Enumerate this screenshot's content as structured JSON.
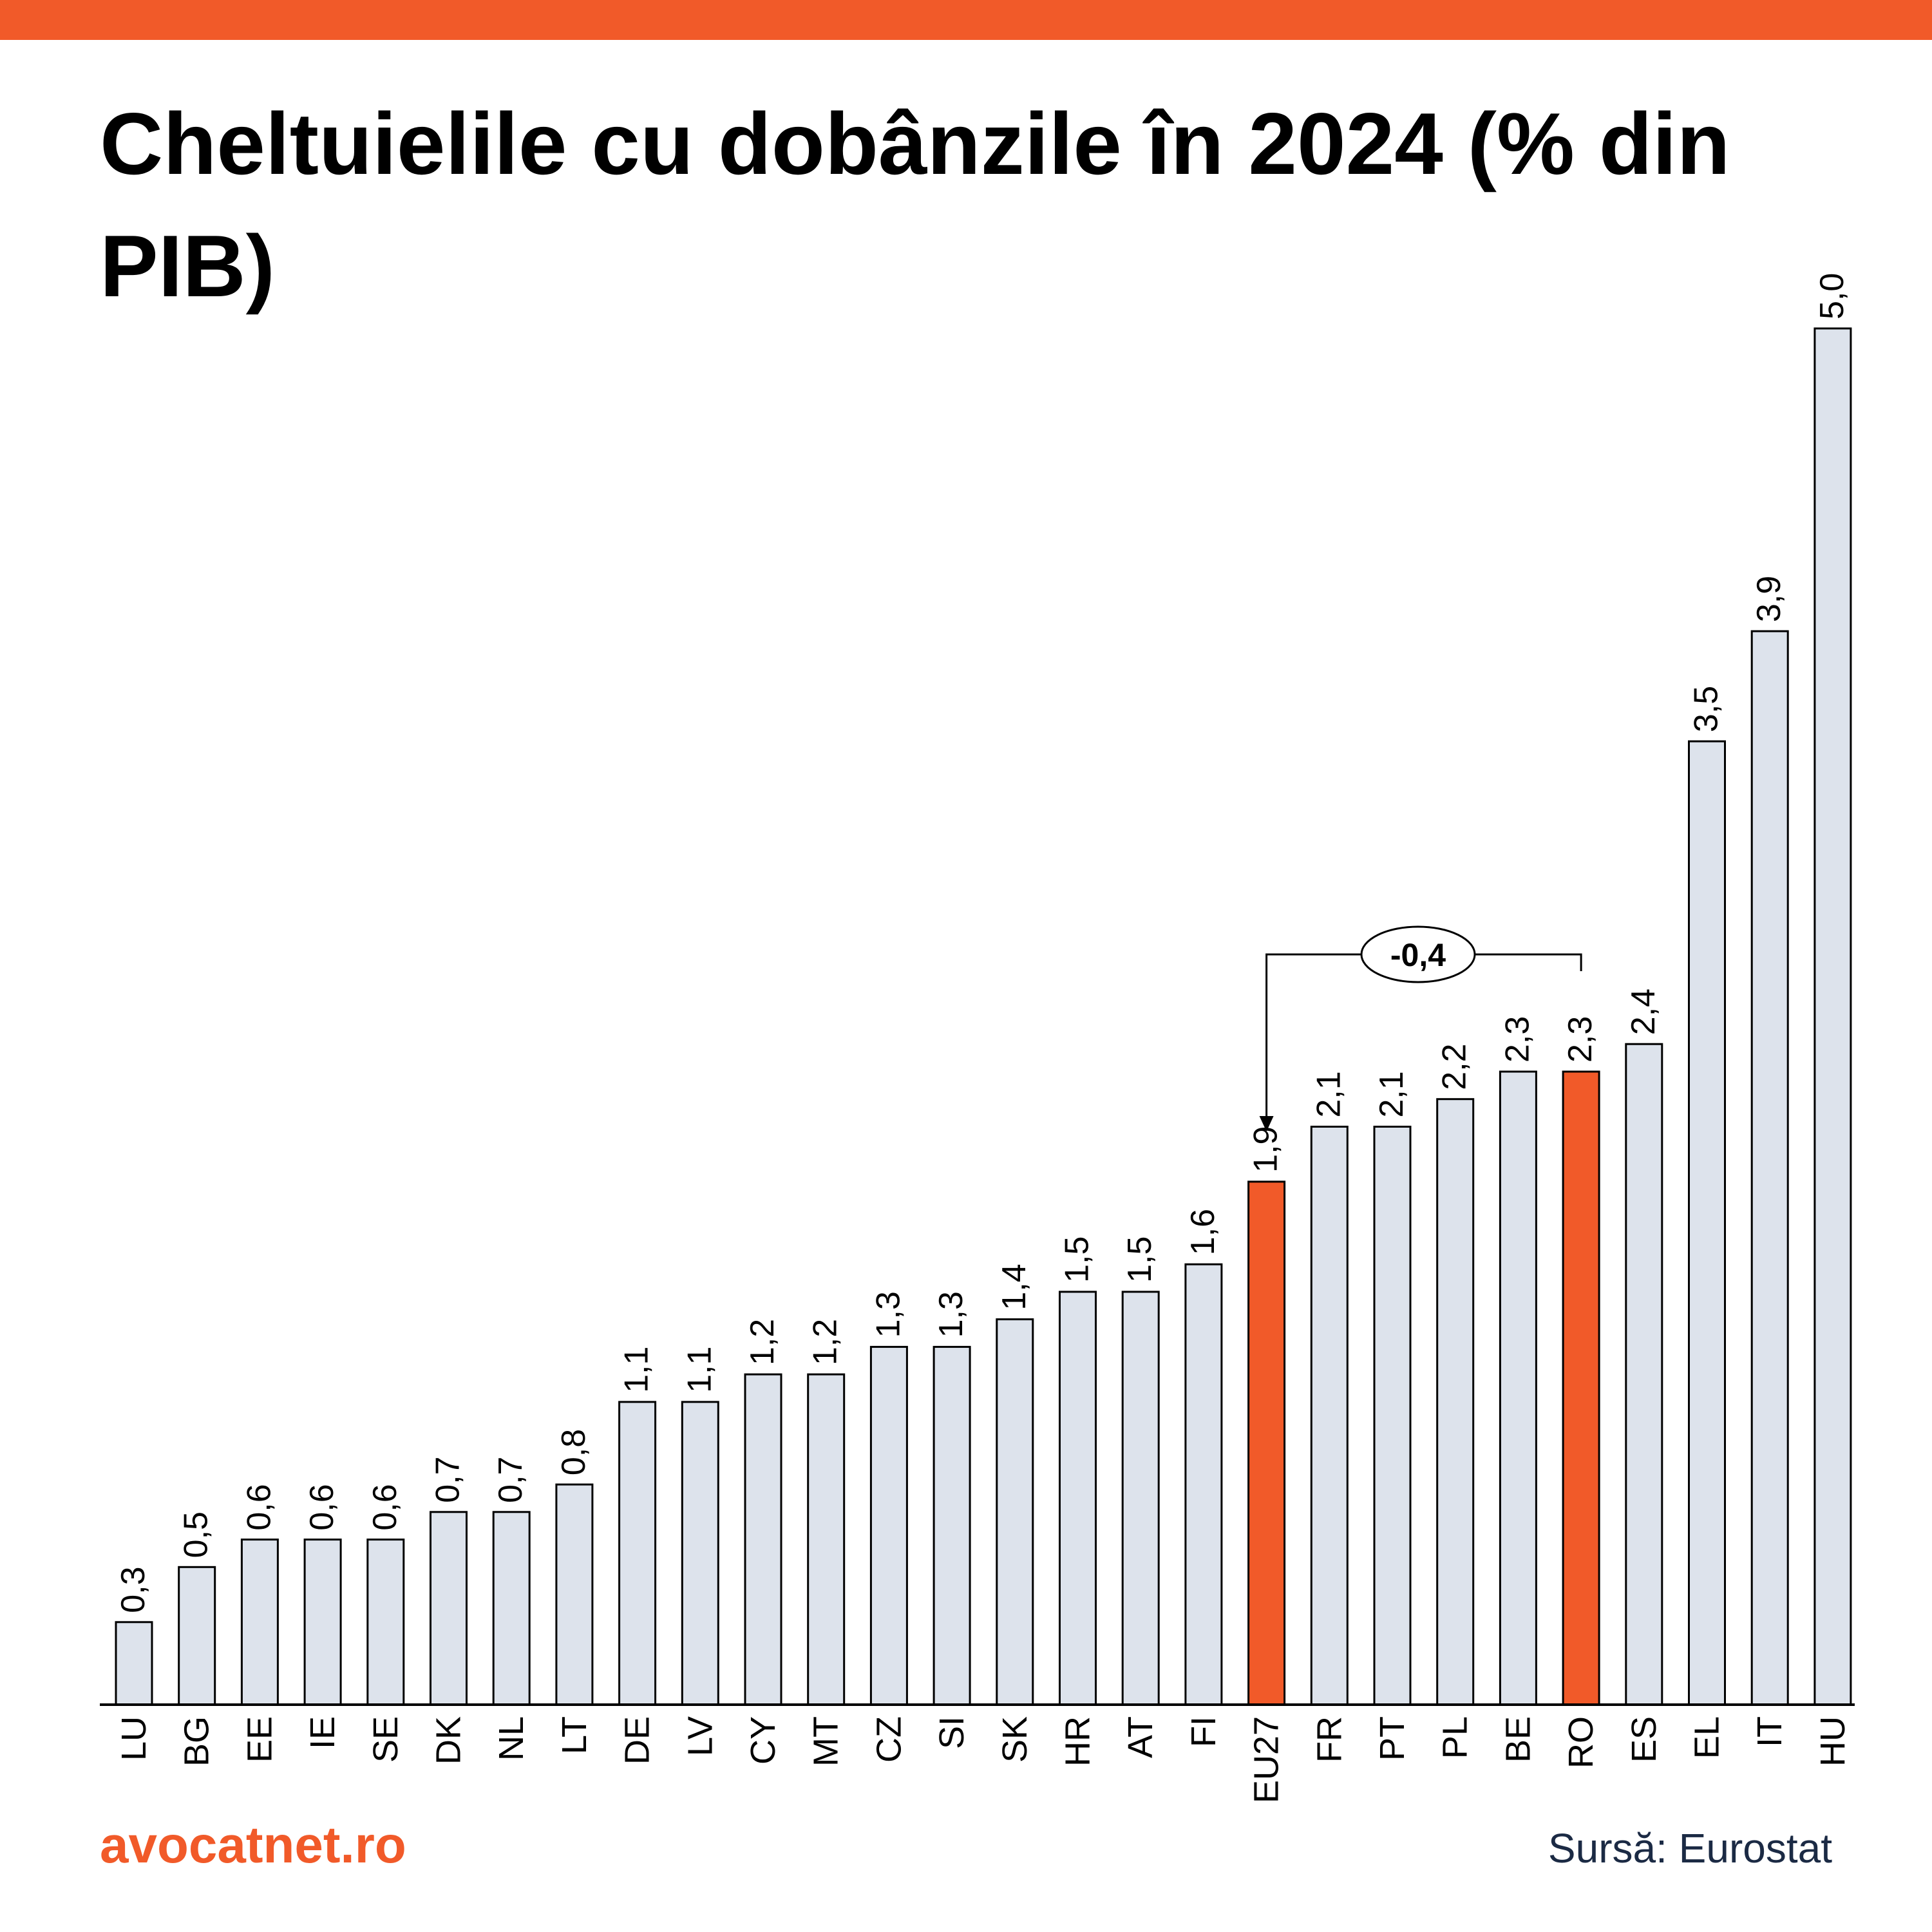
{
  "title": "Cheltuielile cu dobânzile în 2024 (% din PIB)",
  "brand": "avocatnet.ro",
  "source": "Sursă: Eurostat",
  "colors": {
    "accent": "#f15a29",
    "bar_fill": "#dde3ec",
    "bar_stroke": "#000000",
    "text": "#000000",
    "source_text": "#1b2a44"
  },
  "chart_data": {
    "type": "bar",
    "title": "Cheltuielile cu dobânzile în 2024 (% din PIB)",
    "xlabel": "",
    "ylabel": "",
    "ylim": [
      0,
      5.0
    ],
    "grid": false,
    "legend": "none",
    "categories": [
      "LU",
      "BG",
      "EE",
      "IE",
      "SE",
      "DK",
      "NL",
      "LT",
      "DE",
      "LV",
      "CY",
      "MT",
      "CZ",
      "SI",
      "SK",
      "HR",
      "AT",
      "FI",
      "EU27",
      "FR",
      "PT",
      "PL",
      "BE",
      "RO",
      "ES",
      "EL",
      "IT",
      "HU"
    ],
    "values": [
      0.3,
      0.5,
      0.6,
      0.6,
      0.6,
      0.7,
      0.7,
      0.8,
      1.1,
      1.1,
      1.2,
      1.2,
      1.3,
      1.3,
      1.4,
      1.5,
      1.5,
      1.6,
      1.9,
      2.1,
      2.1,
      2.2,
      2.3,
      2.3,
      2.4,
      3.5,
      3.9,
      5.0
    ],
    "value_labels": [
      "0,3",
      "0,5",
      "0,6",
      "0,6",
      "0,6",
      "0,7",
      "0,7",
      "0,8",
      "1,1",
      "1,1",
      "1,2",
      "1,2",
      "1,3",
      "1,3",
      "1,4",
      "1,5",
      "1,5",
      "1,6",
      "1,9",
      "2,1",
      "2,1",
      "2,2",
      "2,3",
      "2,3",
      "2,4",
      "3,5",
      "3,9",
      "5,0"
    ],
    "highlighted": [
      "EU27",
      "RO"
    ],
    "annotation": {
      "from": "RO",
      "to": "EU27",
      "label": "-0,4"
    }
  }
}
